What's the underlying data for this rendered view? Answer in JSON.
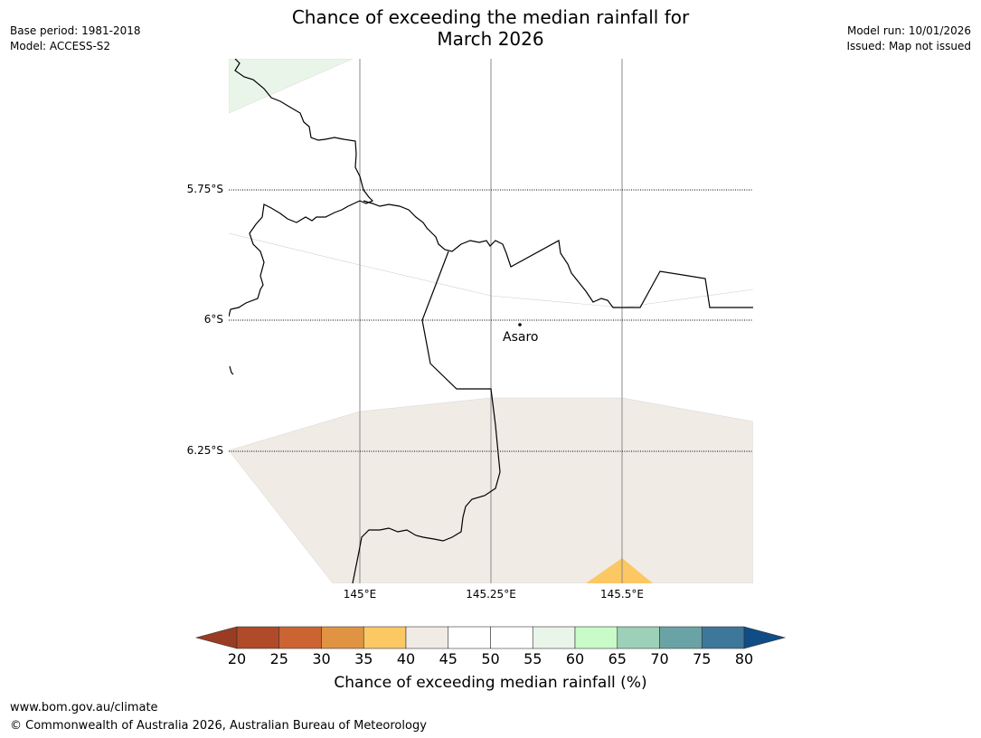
{
  "header": {
    "base_period": "Base period: 1981-2018",
    "model": "Model: ACCESS-S2",
    "title_line1": "Chance of exceeding the median rainfall for",
    "title_line2": "March 2026",
    "model_run": "Model run: 10/01/2026",
    "issued": "Issued: Map not issued"
  },
  "map": {
    "lat_labels": [
      "5.75°S",
      "6°S",
      "6.25°S"
    ],
    "lon_labels": [
      "145°E",
      "145.25°E",
      "145.5°E"
    ],
    "place_label": "Asaro",
    "colors": {
      "land_30_35": "#fcc864",
      "land_40_45": "#f0ebe5",
      "land_55_60": "#eaf5e9"
    }
  },
  "colorbar": {
    "ticks": [
      "20",
      "25",
      "30",
      "35",
      "40",
      "45",
      "50",
      "55",
      "60",
      "65",
      "70",
      "75",
      "80"
    ],
    "label": "Chance of exceeding median rainfall (%)",
    "under_color": "#9a3b23",
    "over_color": "#104c86",
    "colors": [
      "#b14a28",
      "#cc6432",
      "#e09443",
      "#fcc864",
      "#f0ebe5",
      "#ffffff",
      "#ffffff",
      "#eaf5e9",
      "#c8fbc8",
      "#9dd0b8",
      "#6aa3a5",
      "#3d7799"
    ]
  },
  "footer": {
    "url": "www.bom.gov.au/climate",
    "copyright": "© Commonwealth of Australia 2026, Australian Bureau of Meteorology"
  }
}
